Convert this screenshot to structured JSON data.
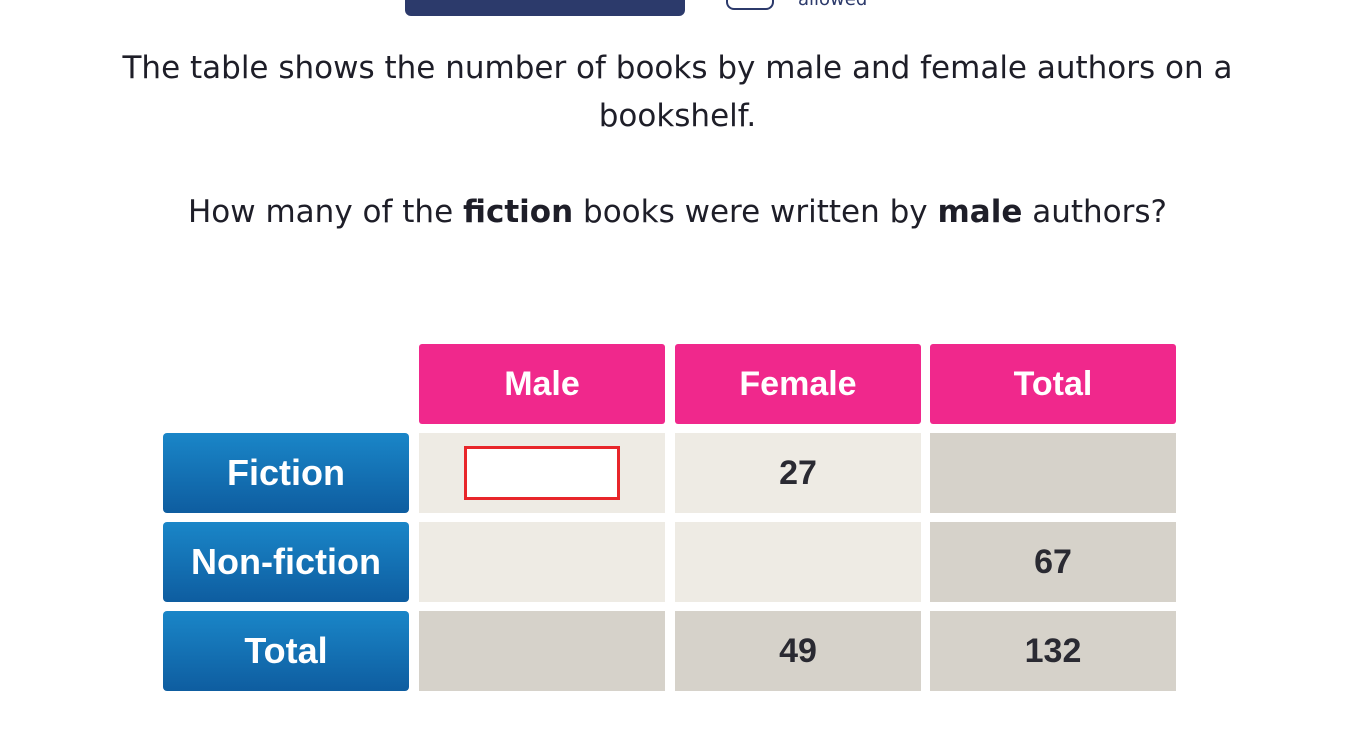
{
  "header": {
    "allowed_text": "allowed"
  },
  "question": {
    "intro": "The table shows the number of books by male and female authors on a bookshelf.",
    "ask_prefix": "How many of the ",
    "ask_bold1": "fiction",
    "ask_mid": " books were written by ",
    "ask_bold2": "male",
    "ask_suffix": " authors?"
  },
  "table": {
    "columns": [
      "Male",
      "Female",
      "Total"
    ],
    "rows": [
      {
        "label": "Fiction",
        "male": "",
        "female": "27",
        "total": ""
      },
      {
        "label": "Non-fiction",
        "male": "",
        "female": "",
        "total": "67"
      },
      {
        "label": "Total",
        "male": "",
        "female": "49",
        "total": "132"
      }
    ]
  },
  "colors": {
    "header_bg": "#f0288c",
    "row_label_bg": "#0e5da0",
    "answer_border": "#e8262a"
  }
}
